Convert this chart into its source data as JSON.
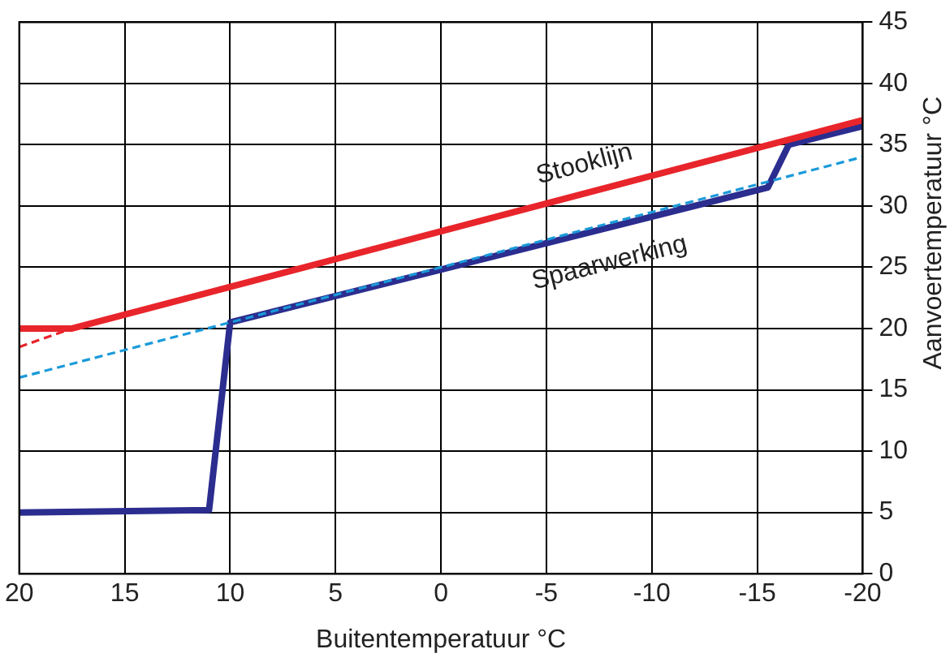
{
  "chart_data": {
    "type": "line",
    "xlabel": "Buitentemperatuur °C",
    "ylabel": "Aanvoertemperatuur °C",
    "xlim": [
      20,
      -20
    ],
    "xticks": [
      20,
      15,
      10,
      5,
      0,
      -5,
      -10,
      -15,
      -20
    ],
    "ylim": [
      0,
      45
    ],
    "yticks": [
      0,
      5,
      10,
      15,
      20,
      25,
      30,
      35,
      40,
      45
    ],
    "grid": true,
    "marker": "none",
    "series": [
      {
        "color": "#e8252b",
        "line_style": "dashed",
        "x": [
          20,
          17.5
        ],
        "values": [
          18.5,
          20
        ]
      },
      {
        "color": "#1a9ad9",
        "line_style": "dashed",
        "x": [
          20,
          -20
        ],
        "values": [
          16,
          34
        ]
      },
      {
        "name": "Stooklijn",
        "color": "#e8252b",
        "line_style": "solid",
        "x": [
          20,
          17.5,
          -20
        ],
        "values": [
          20,
          20,
          37
        ]
      },
      {
        "name": "Spaarwerking",
        "color": "#2b2d8f",
        "line_style": "solid",
        "x": [
          20,
          11,
          10,
          -15.5,
          -16.5,
          -20
        ],
        "values": [
          5,
          5.2,
          20.5,
          31.5,
          35,
          36.5
        ]
      }
    ]
  }
}
